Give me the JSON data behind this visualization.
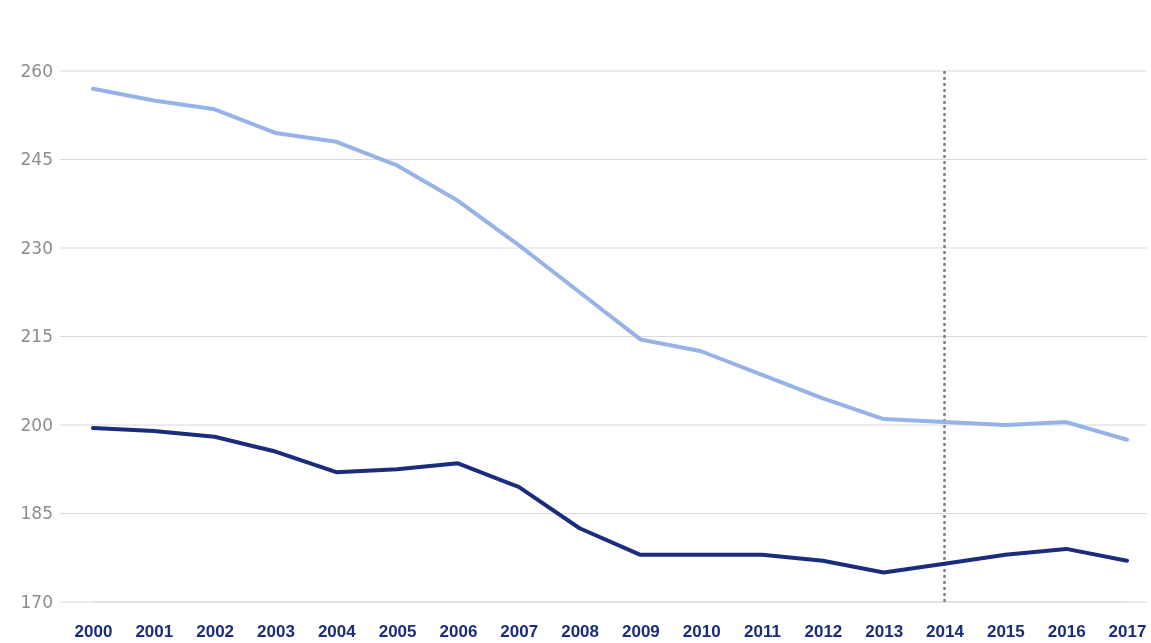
{
  "chart_data": {
    "type": "line",
    "x": [
      2000,
      2001,
      2002,
      2003,
      2004,
      2005,
      2006,
      2007,
      2008,
      2009,
      2010,
      2011,
      2012,
      2013,
      2014,
      2015,
      2016,
      2017
    ],
    "xlim": [
      2000,
      2017
    ],
    "xticks": [
      2000,
      2001,
      2002,
      2003,
      2004,
      2005,
      2006,
      2007,
      2008,
      2009,
      2010,
      2011,
      2012,
      2013,
      2014,
      2015,
      2016,
      2017
    ],
    "ylim": [
      170,
      260
    ],
    "yticks": [
      170,
      185,
      200,
      215,
      230,
      245,
      260
    ],
    "grid": "y",
    "marker": "none",
    "line_style": "solid",
    "series": [
      {
        "color": "#95b3e7",
        "values": [
          257,
          255,
          253.5,
          249.5,
          248,
          244,
          238,
          230.5,
          222.5,
          214.5,
          212.5,
          208.5,
          204.5,
          201,
          200.5,
          200,
          200.5,
          197.5
        ]
      },
      {
        "color": "#1a2c7c",
        "values": [
          199.5,
          199,
          198,
          195.5,
          192,
          192.5,
          193.5,
          189.5,
          182.5,
          178,
          178,
          178,
          177,
          175,
          176.5,
          178,
          179,
          177
        ]
      }
    ],
    "ref_lines": [
      {
        "axis": "x",
        "value": 2014,
        "color": "#808080",
        "line_style": "dotted"
      }
    ]
  }
}
